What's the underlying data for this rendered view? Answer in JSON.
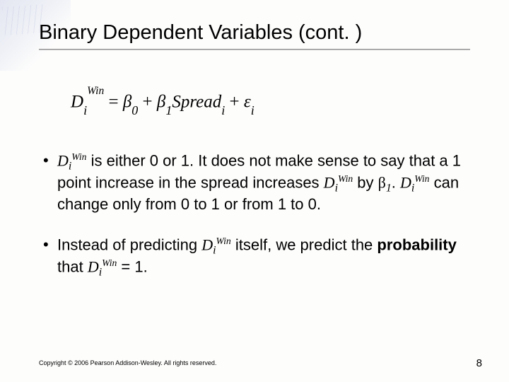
{
  "title": "Binary Dependent Variables (cont. )",
  "equation": {
    "lhs_var": "D",
    "lhs_sub": "i",
    "lhs_sup": "Win",
    "eq_sign": " = ",
    "b0_sym": "β",
    "b0_sub": "0",
    "plus1": " + ",
    "b1_sym": "β",
    "b1_sub": "1",
    "spread_var": "Spread",
    "spread_sub": "i",
    "plus2": " + ",
    "eps_sym": "ε",
    "eps_sub": "i"
  },
  "bullet1": {
    "d1_var": "D",
    "d1_sub": "i",
    "d1_sup": "Win",
    "t1": " is either 0 or 1. It does not make sense to say that a 1 point increase in the spread increases ",
    "d2_var": "D",
    "d2_sub": "i",
    "d2_sup": "Win",
    "t2": " by ",
    "beta": "β",
    "beta_sub": "1",
    "t3": ". ",
    "d3_var": "D",
    "d3_sub": "i",
    "d3_sup": "Win",
    "t4": " can change only from 0 to 1 or from 1 to 0."
  },
  "bullet2": {
    "t1": "Instead of predicting ",
    "d1_var": "D",
    "d1_sub": "i",
    "d1_sup": "Win",
    "t2": " itself, we predict the ",
    "bold": "probability",
    "t3": " that ",
    "d2_var": "D",
    "d2_sub": "i",
    "d2_sup": "Win",
    "t4": " = 1."
  },
  "footer": "Copyright © 2006 Pearson Addison-Wesley. All rights reserved.",
  "page_number": "8",
  "colors": {
    "text": "#000000",
    "background": "#fdfdfc",
    "rule": "#999999"
  }
}
